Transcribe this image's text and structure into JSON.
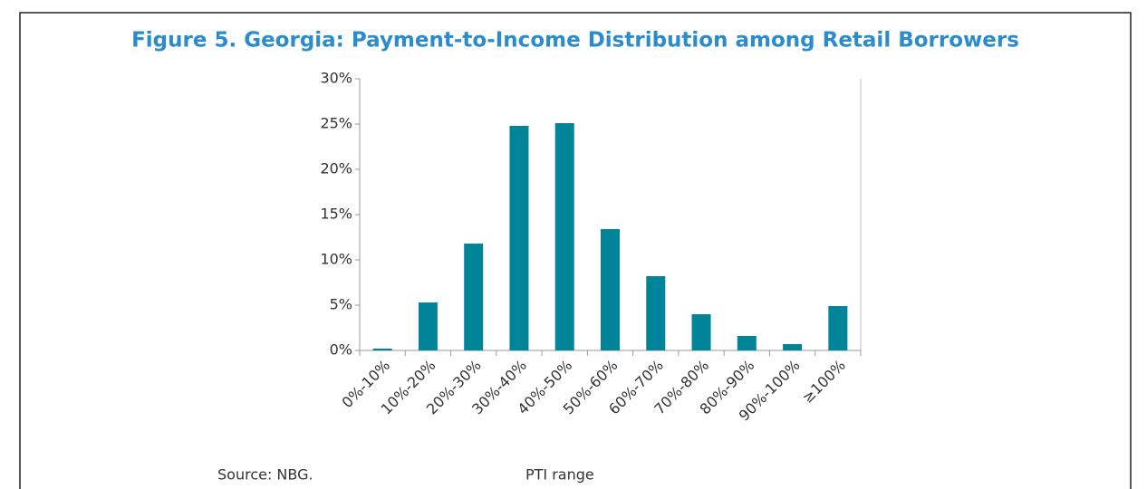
{
  "chart_data": {
    "type": "bar",
    "title": "Figure 5. Georgia: Payment-to-Income Distribution among Retail Borrowers",
    "categories": [
      "0%-10%",
      "10%-20%",
      "20%-30%",
      "30%-40%",
      "40%-50%",
      "50%-60%",
      "60%-70%",
      "70%-80%",
      "80%-90%",
      "90%-100%",
      "≥100%"
    ],
    "values": [
      0.2,
      5.3,
      11.8,
      24.8,
      25.1,
      13.4,
      8.2,
      4.0,
      1.6,
      0.7,
      4.9
    ],
    "color": "#00849a",
    "ylim": [
      0,
      30
    ],
    "yticks": [
      {
        "value": 0,
        "label": "0%"
      },
      {
        "value": 5,
        "label": "5%"
      },
      {
        "value": 10,
        "label": "10%"
      },
      {
        "value": 15,
        "label": "15%"
      },
      {
        "value": 20,
        "label": "20%"
      },
      {
        "value": 25,
        "label": "25%"
      },
      {
        "value": 30,
        "label": "30%"
      }
    ],
    "xlabel": "PTI range",
    "source": "Source: NBG.",
    "grid": false
  }
}
